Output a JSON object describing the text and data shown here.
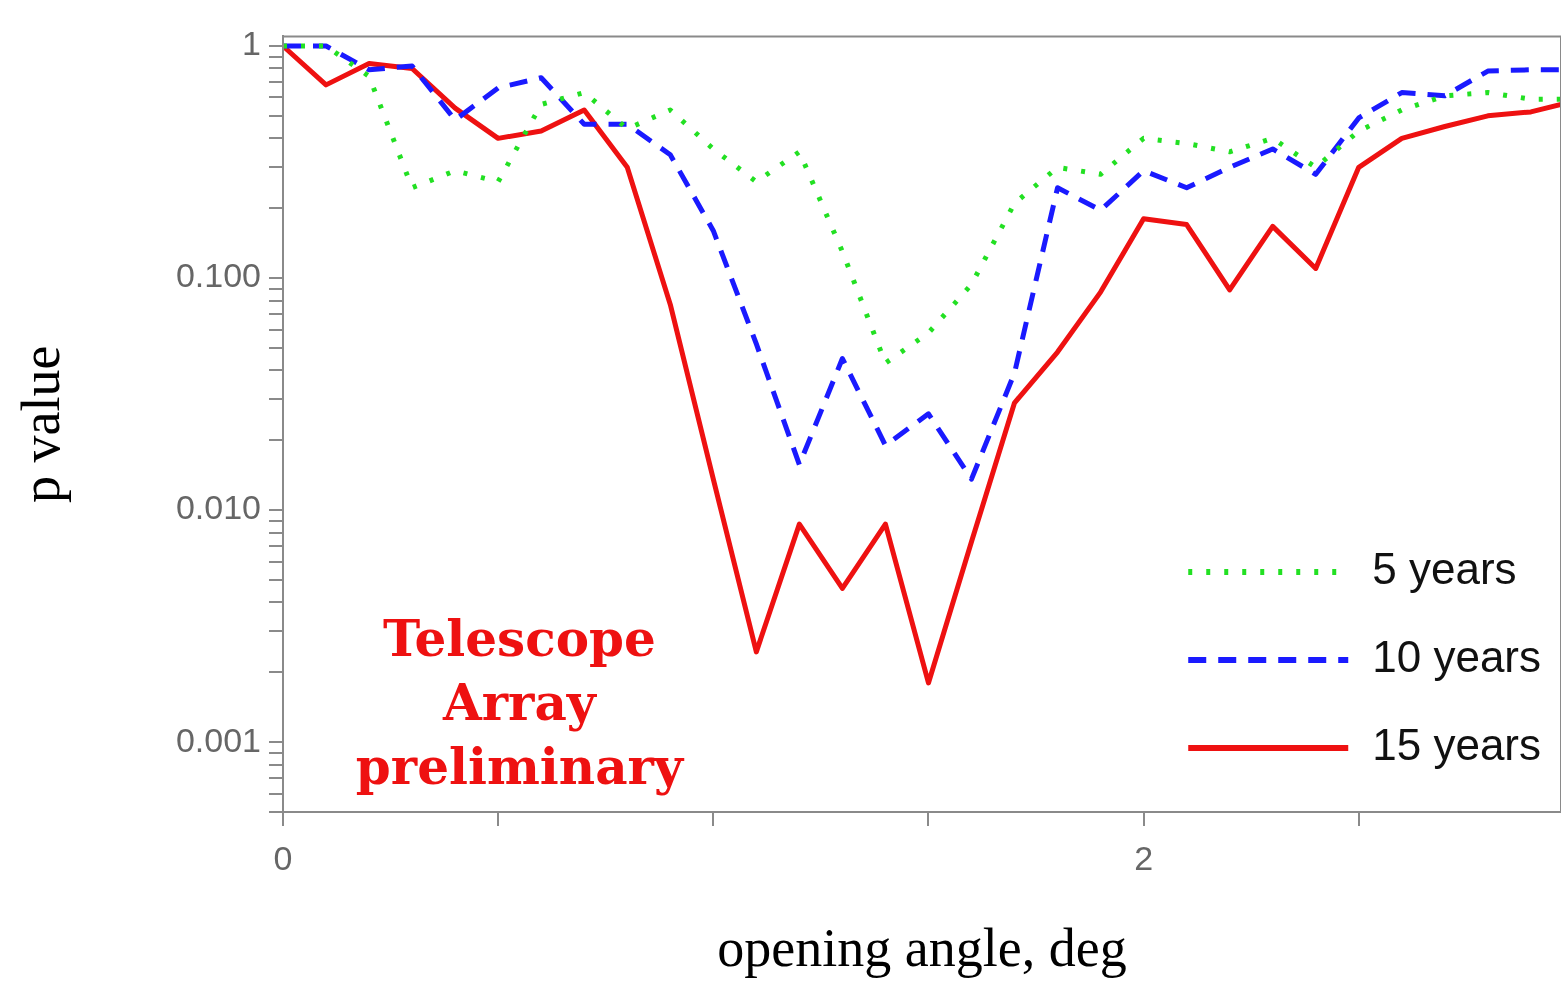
{
  "chart_data": {
    "type": "line",
    "xlabel": "opening angle, deg",
    "ylabel": "p value",
    "log": "y",
    "x": [
      0,
      0.1,
      0.2,
      0.3,
      0.4,
      0.5,
      0.6,
      0.7,
      0.8,
      0.9,
      1.0,
      1.1,
      1.2,
      1.3,
      1.4,
      1.5,
      1.6,
      1.7,
      1.8,
      1.9,
      2.0,
      2.1,
      2.2,
      2.3,
      2.4,
      2.5,
      2.6,
      2.7,
      2.8,
      2.9,
      2.97
    ],
    "series": [
      {
        "name": "5 years",
        "color": "#22e022",
        "line_style": "dotted",
        "values": [
          1,
          1,
          0.74,
          0.245,
          0.29,
          0.26,
          0.56,
          0.63,
          0.44,
          0.53,
          0.36,
          0.26,
          0.35,
          0.13,
          0.043,
          0.058,
          0.094,
          0.21,
          0.3,
          0.28,
          0.4,
          0.38,
          0.35,
          0.4,
          0.3,
          0.43,
          0.53,
          0.61,
          0.63,
          0.59,
          0.59
        ]
      },
      {
        "name": "10 years",
        "color": "#1a1aff",
        "line_style": "dashed",
        "values": [
          1,
          1,
          0.79,
          0.82,
          0.48,
          0.66,
          0.73,
          0.46,
          0.46,
          0.34,
          0.16,
          0.052,
          0.0157,
          0.045,
          0.019,
          0.026,
          0.0136,
          0.039,
          0.245,
          0.196,
          0.29,
          0.245,
          0.3,
          0.36,
          0.28,
          0.49,
          0.63,
          0.61,
          0.78,
          0.79,
          0.79
        ]
      },
      {
        "name": "15 years",
        "color": "#ee1111",
        "line_style": "solid",
        "values": [
          1,
          0.68,
          0.84,
          0.8,
          0.54,
          0.4,
          0.43,
          0.53,
          0.3,
          0.077,
          0.0136,
          0.00245,
          0.0087,
          0.0046,
          0.0087,
          0.0018,
          0.0073,
          0.029,
          0.048,
          0.087,
          0.18,
          0.17,
          0.089,
          0.167,
          0.11,
          0.3,
          0.4,
          0.45,
          0.5,
          0.52,
          0.56
        ]
      }
    ],
    "xlim": [
      0,
      2.97
    ],
    "xticks": [
      0,
      {
        "value": 0.5,
        "label": null
      },
      {
        "value": 1,
        "label": null
      },
      {
        "value": 1.5,
        "label": null
      },
      2,
      {
        "value": 2.5,
        "label": null
      }
    ],
    "ylim": [
      0.0005,
      1.1
    ],
    "yticks": [
      {
        "value": 0.0005,
        "label": null
      },
      {
        "value": 0.0006,
        "label": null
      },
      {
        "value": 0.0007,
        "label": null
      },
      {
        "value": 0.0008,
        "label": null
      },
      {
        "value": 0.0009,
        "label": null
      },
      {
        "value": 0.001,
        "label": "0.001"
      },
      {
        "value": 0.002,
        "label": null
      },
      {
        "value": 0.003,
        "label": null
      },
      {
        "value": 0.004,
        "label": null
      },
      {
        "value": 0.005,
        "label": null
      },
      {
        "value": 0.006,
        "label": null
      },
      {
        "value": 0.007,
        "label": null
      },
      {
        "value": 0.008,
        "label": null
      },
      {
        "value": 0.009,
        "label": null
      },
      {
        "value": 0.01,
        "label": "0.010"
      },
      {
        "value": 0.02,
        "label": null
      },
      {
        "value": 0.03,
        "label": null
      },
      {
        "value": 0.04,
        "label": null
      },
      {
        "value": 0.05,
        "label": null
      },
      {
        "value": 0.06,
        "label": null
      },
      {
        "value": 0.07,
        "label": null
      },
      {
        "value": 0.08,
        "label": null
      },
      {
        "value": 0.09,
        "label": null
      },
      {
        "value": 0.1,
        "label": "0.100"
      },
      {
        "value": 0.2,
        "label": null
      },
      {
        "value": 0.3,
        "label": null
      },
      {
        "value": 0.4,
        "label": null
      },
      {
        "value": 0.5,
        "label": null
      },
      {
        "value": 0.6,
        "label": null
      },
      {
        "value": 0.7,
        "label": null
      },
      {
        "value": 0.8,
        "label": null
      },
      {
        "value": 0.9,
        "label": null
      },
      1
    ],
    "grid": false,
    "legend": "bottom right",
    "marker": "none",
    "annotations": [
      "Telescope Array preliminary"
    ]
  }
}
